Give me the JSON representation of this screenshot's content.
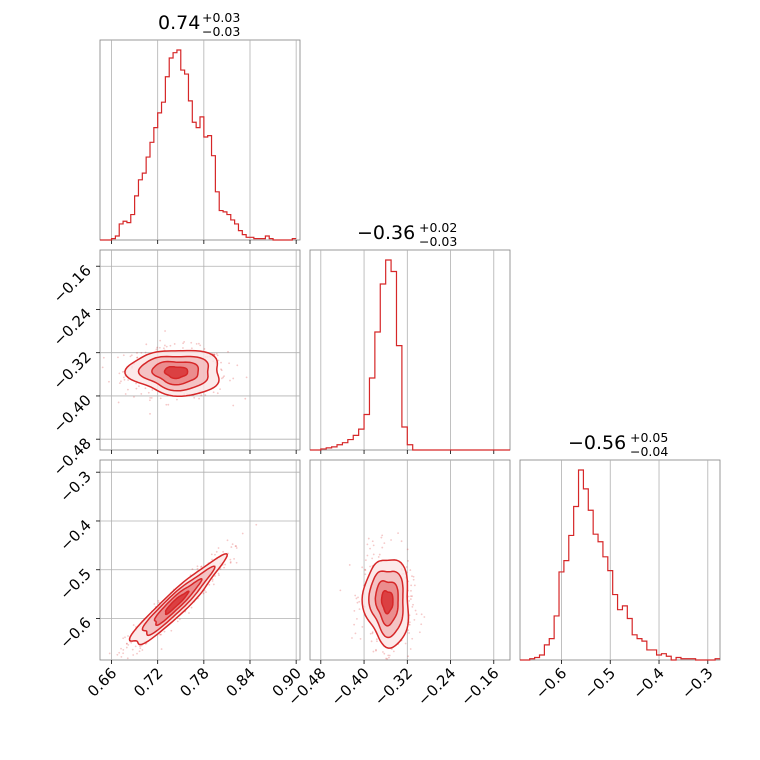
{
  "colors": {
    "series": "#d62728",
    "fill_inner": "#e87b7c",
    "fill_mid": "#f2b6b7",
    "fill_outer": "#fbe3e3",
    "grid": "#b0b0b0",
    "frame": "#808080"
  },
  "chart_data": [
    {
      "type": "bar",
      "id": "hist-p1",
      "subtype": "histogram",
      "title": {
        "median": "0.74",
        "plus": "+0.03",
        "minus": "−0.03"
      },
      "xlim": [
        0.645,
        0.905
      ],
      "xticks": [
        0.66,
        0.72,
        0.78,
        0.84,
        0.9
      ],
      "grid": true,
      "bins_x": [
        0.645,
        0.65,
        0.655,
        0.66,
        0.665,
        0.67,
        0.675,
        0.68,
        0.685,
        0.69,
        0.695,
        0.7,
        0.705,
        0.71,
        0.715,
        0.72,
        0.725,
        0.73,
        0.735,
        0.74,
        0.745,
        0.75,
        0.755,
        0.76,
        0.765,
        0.77,
        0.775,
        0.78,
        0.785,
        0.79,
        0.795,
        0.8,
        0.805,
        0.81,
        0.815,
        0.82,
        0.825,
        0.83,
        0.835,
        0.84,
        0.845,
        0.85,
        0.855,
        0.86,
        0.865,
        0.87,
        0.875,
        0.88,
        0.885,
        0.89,
        0.895,
        0.9
      ],
      "counts": [
        0,
        0,
        0,
        1,
        3,
        12,
        14,
        13,
        19,
        33,
        45,
        50,
        62,
        73,
        84,
        95,
        103,
        122,
        136,
        140,
        142,
        127,
        124,
        104,
        88,
        84,
        92,
        77,
        78,
        63,
        36,
        22,
        21,
        19,
        15,
        12,
        7,
        4,
        2,
        2,
        1,
        1,
        1,
        3,
        1,
        0,
        0,
        0,
        0,
        0,
        1
      ]
    },
    {
      "type": "scatter",
      "id": "corner-p1-p2",
      "subtype": "2d-density-contour",
      "x_param": "p1",
      "y_param": "p2",
      "xlim": [
        0.645,
        0.905
      ],
      "ylim": [
        -0.5,
        -0.13
      ],
      "xticks": [
        0.66,
        0.72,
        0.78,
        0.84,
        0.9
      ],
      "yticks": [
        -0.16,
        -0.24,
        -0.32,
        -0.4,
        -0.48
      ],
      "ytick_labels": [
        "−0.16",
        "−0.24",
        "−0.32",
        "−0.40",
        "−0.48"
      ],
      "grid": true,
      "center": [
        0.744,
        -0.356
      ],
      "spread": [
        0.03,
        0.021
      ],
      "correlation": -0.05,
      "contour_levels_sigma": [
        0.5,
        1.0,
        1.5,
        2.0
      ]
    },
    {
      "type": "bar",
      "id": "hist-p2",
      "subtype": "histogram",
      "title": {
        "median": "−0.36",
        "plus": "+0.02",
        "minus": "−0.03"
      },
      "xlim": [
        -0.5,
        -0.13
      ],
      "xticks": [
        -0.48,
        -0.4,
        -0.32,
        -0.24,
        -0.16
      ],
      "grid": true,
      "bins_x": [
        -0.5,
        -0.49,
        -0.48,
        -0.47,
        -0.46,
        -0.45,
        -0.44,
        -0.43,
        -0.42,
        -0.41,
        -0.4,
        -0.39,
        -0.38,
        -0.37,
        -0.36,
        -0.35,
        -0.34,
        -0.33,
        -0.32,
        -0.31,
        -0.3,
        -0.29,
        -0.28,
        -0.27,
        -0.26,
        -0.25,
        -0.24,
        -0.23,
        -0.22,
        -0.21,
        -0.2,
        -0.19,
        -0.18,
        -0.17,
        -0.16,
        -0.15,
        -0.14,
        -0.13
      ],
      "counts": [
        0,
        0,
        1,
        2,
        3,
        5,
        7,
        10,
        14,
        20,
        34,
        69,
        113,
        159,
        182,
        171,
        100,
        22,
        5,
        0,
        0,
        0,
        0,
        0,
        0,
        0,
        0,
        0,
        0,
        0,
        0,
        0,
        0,
        0,
        0,
        0,
        0
      ]
    },
    {
      "type": "scatter",
      "id": "corner-p1-p3",
      "subtype": "2d-density-contour",
      "x_param": "p1",
      "y_param": "p3",
      "xlim": [
        0.645,
        0.905
      ],
      "ylim": [
        -0.685,
        -0.275
      ],
      "xticks": [
        0.66,
        0.72,
        0.78,
        0.84,
        0.9
      ],
      "xtick_labels": [
        "0.66",
        "0.72",
        "0.78",
        "0.84",
        "0.90"
      ],
      "yticks": [
        -0.3,
        -0.4,
        -0.5,
        -0.6
      ],
      "ytick_labels": [
        "−0.3",
        "−0.4",
        "−0.5",
        "−0.6"
      ],
      "grid": true,
      "center": [
        0.744,
        -0.568
      ],
      "spread": [
        0.03,
        0.045
      ],
      "correlation": 0.94,
      "contour_levels_sigma": [
        0.5,
        1.0,
        1.5,
        2.0
      ]
    },
    {
      "type": "scatter",
      "id": "corner-p2-p3",
      "subtype": "2d-density-contour",
      "x_param": "p2",
      "y_param": "p3",
      "xlim": [
        -0.5,
        -0.13
      ],
      "ylim": [
        -0.685,
        -0.275
      ],
      "xticks": [
        -0.48,
        -0.4,
        -0.32,
        -0.24,
        -0.16
      ],
      "xtick_labels": [
        "−0.48",
        "−0.40",
        "−0.32",
        "−0.24",
        "−0.16"
      ],
      "grid": true,
      "center": [
        -0.357,
        -0.565
      ],
      "spread": [
        0.021,
        0.045
      ],
      "correlation": -0.08,
      "contour_levels_sigma": [
        0.5,
        1.0,
        1.5,
        2.0
      ]
    },
    {
      "type": "bar",
      "id": "hist-p3",
      "subtype": "histogram",
      "title": {
        "median": "−0.56",
        "plus": "+0.05",
        "minus": "−0.04"
      },
      "xlim": [
        -0.685,
        -0.275
      ],
      "xticks": [
        -0.6,
        -0.5,
        -0.4,
        -0.3
      ],
      "xtick_labels": [
        "−0.6",
        "−0.5",
        "−0.4",
        "−0.3"
      ],
      "grid": true,
      "bins_x": [
        -0.685,
        -0.675,
        -0.665,
        -0.655,
        -0.645,
        -0.635,
        -0.625,
        -0.615,
        -0.605,
        -0.595,
        -0.585,
        -0.575,
        -0.565,
        -0.555,
        -0.545,
        -0.535,
        -0.525,
        -0.515,
        -0.505,
        -0.495,
        -0.485,
        -0.475,
        -0.465,
        -0.455,
        -0.445,
        -0.435,
        -0.425,
        -0.415,
        -0.405,
        -0.395,
        -0.385,
        -0.375,
        -0.365,
        -0.355,
        -0.345,
        -0.335,
        -0.325,
        -0.315,
        -0.305,
        -0.295,
        -0.285,
        -0.275
      ],
      "counts": [
        0,
        0,
        1,
        2,
        4,
        12,
        17,
        35,
        70,
        79,
        99,
        122,
        151,
        136,
        119,
        100,
        94,
        82,
        71,
        52,
        40,
        43,
        33,
        20,
        17,
        15,
        8,
        8,
        4,
        5,
        3,
        0,
        2,
        1,
        1,
        1,
        0,
        0,
        0,
        0,
        1
      ]
    }
  ]
}
